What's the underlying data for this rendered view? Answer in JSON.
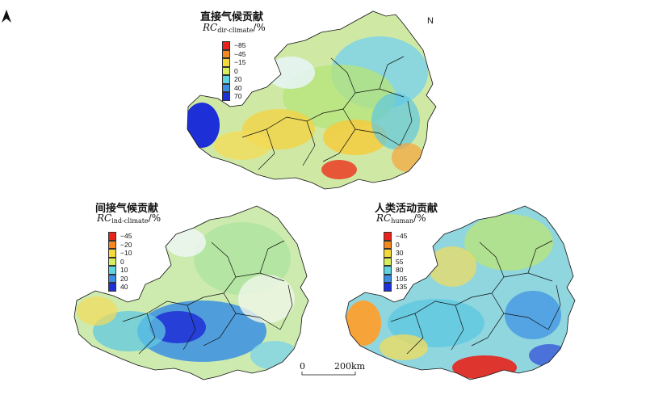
{
  "panels": [
    {
      "title": "直接气候贡献",
      "subtitle_main": "RC",
      "subtitle_sub": "dir-climate",
      "subtitle_unit": "/%",
      "legend": [
        {
          "label": "−85",
          "color": "#e8231c"
        },
        {
          "label": "−45",
          "color": "#f7881e"
        },
        {
          "label": "−15",
          "color": "#f5d93b"
        },
        {
          "label": "0",
          "color": "#d6ef5a"
        },
        {
          "label": "20",
          "color": "#5fd4e0"
        },
        {
          "label": "40",
          "color": "#3a8fe4"
        },
        {
          "label": "70",
          "color": "#1d2fd6"
        }
      ]
    },
    {
      "title": "间接气候贡献",
      "subtitle_main": "RC",
      "subtitle_sub": "ind-climate",
      "subtitle_unit": "/%",
      "legend": [
        {
          "label": "−45",
          "color": "#e8231c"
        },
        {
          "label": "−20",
          "color": "#f7881e"
        },
        {
          "label": "−10",
          "color": "#f5d93b"
        },
        {
          "label": "0",
          "color": "#d6ef5a"
        },
        {
          "label": "10",
          "color": "#5fd4e0"
        },
        {
          "label": "20",
          "color": "#3a8fe4"
        },
        {
          "label": "40",
          "color": "#1d2fd6"
        }
      ]
    },
    {
      "title": "人类活动贡献",
      "subtitle_main": "RC",
      "subtitle_sub": "human",
      "subtitle_unit": "/%",
      "legend": [
        {
          "label": "−45",
          "color": "#e8231c"
        },
        {
          "label": "0",
          "color": "#f7881e"
        },
        {
          "label": "30",
          "color": "#f5d93b"
        },
        {
          "label": "55",
          "color": "#d6ef5a"
        },
        {
          "label": "80",
          "color": "#5fd4e0"
        },
        {
          "label": "105",
          "color": "#3a8fe4"
        },
        {
          "label": "135",
          "color": "#1d2fd6"
        }
      ]
    }
  ],
  "north_arrow": "N",
  "scale_bar": {
    "start": "0",
    "end": "200km"
  },
  "colors": {
    "boundary": "#111111",
    "background": "#ffffff"
  }
}
